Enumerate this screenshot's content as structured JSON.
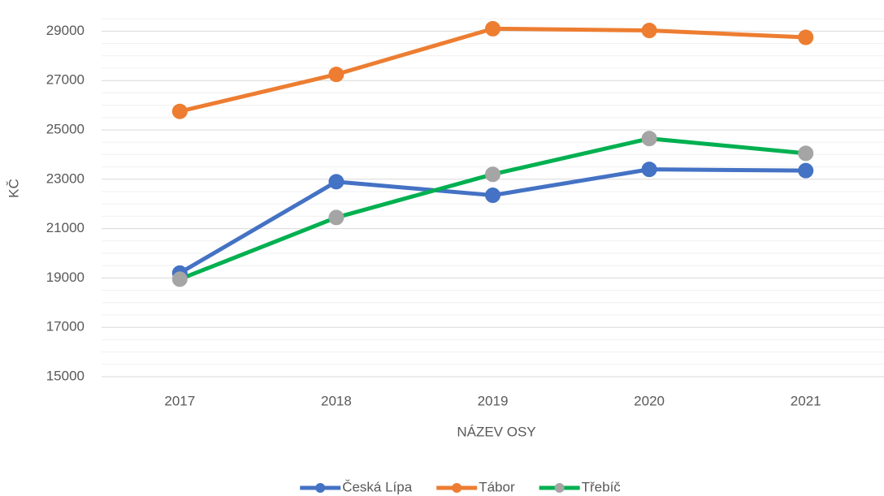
{
  "chart_data": {
    "type": "line",
    "categories": [
      "2017",
      "2018",
      "2019",
      "2020",
      "2021"
    ],
    "series": [
      {
        "name": "Česká Lípa",
        "color": "#4472c4",
        "marker_color": "#4472c4",
        "values": [
          19200,
          22900,
          22350,
          23400,
          23350
        ]
      },
      {
        "name": "Tábor",
        "color": "#ed7d31",
        "marker_color": "#ed7d31",
        "values": [
          25750,
          27250,
          29100,
          29030,
          28750
        ]
      },
      {
        "name": "Třebíč",
        "color": "#00b050",
        "marker_color": "#a5a5a5",
        "values": [
          18950,
          21450,
          23200,
          24650,
          24050
        ]
      }
    ],
    "ylim": [
      15000,
      30000
    ],
    "yticks": [
      15000,
      17000,
      19000,
      21000,
      23000,
      25000,
      27000,
      29000
    ],
    "xlabel": "NÁZEV OSY",
    "ylabel": "KČ",
    "grid": true,
    "legend": "bottom"
  }
}
